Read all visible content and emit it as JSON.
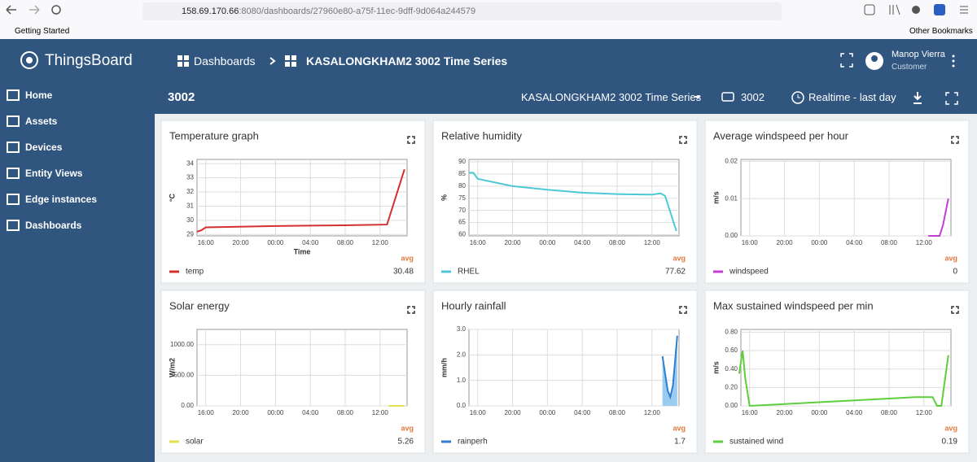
{
  "browser": {
    "url_host": "158.69.170.66",
    "url_rest": ":8080/dashboards/27960e80-a75f-11ec-9dff-9d064a244579",
    "bookmark": "Getting Started",
    "other_bookmarks": "Other Bookmarks"
  },
  "sidebar": {
    "logo": "ThingsBoard",
    "items": [
      "Home",
      "Assets",
      "Devices",
      "Entity Views",
      "Edge instances",
      "Dashboards"
    ]
  },
  "header": {
    "crumb1": "Dashboards",
    "crumb2": "KASALONGKHAM2 3002 Time Series",
    "user": "Manop Vierra",
    "role": "Customer"
  },
  "toolbar": {
    "title": "3002",
    "dashboard": "KASALONGKHAM2 3002 Time Series",
    "device": "3002",
    "timewindow": "Realtime - last day"
  },
  "chart_data": [
    {
      "type": "line",
      "title": "Temperature graph",
      "y_label": "°C",
      "x_label": "Time",
      "x": [
        15,
        15.5,
        16,
        24,
        32,
        36.8,
        38.8
      ],
      "series": [
        {
          "name": "temp",
          "color": "#d32f2f",
          "values": [
            29.2,
            29.3,
            29.5,
            29.6,
            29.65,
            29.7,
            33.6
          ]
        }
      ],
      "xlim": [
        15,
        39.1
      ],
      "ylim": [
        28.9,
        34.3
      ],
      "xticks": [
        {
          "value": 16,
          "label": "16:00"
        },
        {
          "value": 20,
          "label": "20:00"
        },
        {
          "value": 24,
          "label": "00:00"
        },
        {
          "value": 28,
          "label": "04:00"
        },
        {
          "value": 32,
          "label": "08:00"
        },
        {
          "value": 36,
          "label": "12:00"
        }
      ],
      "yticks": [
        29,
        30,
        31,
        32,
        33,
        34
      ],
      "grid": true,
      "avg_label": "avg",
      "avg": 30.48
    },
    {
      "type": "line",
      "title": "Relative humidity",
      "y_label": "%",
      "x": [
        15,
        15.5,
        16,
        20,
        24,
        28,
        32,
        36,
        37,
        37.5,
        38.8
      ],
      "series": [
        {
          "name": "RHEL",
          "color": "#4dc9d6",
          "values": [
            85.5,
            85.5,
            83,
            80,
            78.5,
            77.3,
            76.7,
            76.5,
            77,
            76,
            61.5
          ]
        }
      ],
      "xlim": [
        15,
        39.1
      ],
      "ylim": [
        59.5,
        91
      ],
      "xticks": [
        {
          "value": 16,
          "label": "16:00"
        },
        {
          "value": 20,
          "label": "20:00"
        },
        {
          "value": 24,
          "label": "00:00"
        },
        {
          "value": 28,
          "label": "04:00"
        },
        {
          "value": 32,
          "label": "08:00"
        },
        {
          "value": 36,
          "label": "12:00"
        }
      ],
      "yticks": [
        60,
        65,
        70,
        75,
        80,
        85,
        90
      ],
      "grid": true,
      "avg_label": "avg",
      "avg": 77.62
    },
    {
      "type": "line",
      "title": "Average windspeed per hour",
      "y_label": "m/s",
      "x": [
        36.5,
        37.8,
        38.2,
        38.8
      ],
      "series": [
        {
          "name": "windspeed",
          "color": "#c040d0",
          "values": [
            0,
            0,
            0.003,
            0.01
          ]
        }
      ],
      "xlim": [
        15,
        39.1
      ],
      "ylim": [
        0,
        0.0205
      ],
      "xticks": [
        {
          "value": 16,
          "label": "16:00"
        },
        {
          "value": 20,
          "label": "20:00"
        },
        {
          "value": 24,
          "label": "00:00"
        },
        {
          "value": 28,
          "label": "04:00"
        },
        {
          "value": 32,
          "label": "08:00"
        },
        {
          "value": 36,
          "label": "12:00"
        }
      ],
      "yticks": [
        {
          "value": 0,
          "label": "0.00"
        },
        {
          "value": 0.01,
          "label": "0.01"
        },
        {
          "value": 0.02,
          "label": "0.02"
        }
      ],
      "grid": true,
      "avg_label": "avg",
      "avg": 0
    },
    {
      "type": "line",
      "title": "Solar energy",
      "y_label": "W/m2",
      "x": [
        37,
        38.8
      ],
      "series": [
        {
          "name": "solar",
          "color": "#e6e04a",
          "values": [
            0,
            0
          ]
        }
      ],
      "xlim": [
        15,
        39.1
      ],
      "ylim": [
        0,
        1250
      ],
      "xticks": [
        {
          "value": 16,
          "label": "16:00"
        },
        {
          "value": 20,
          "label": "20:00"
        },
        {
          "value": 24,
          "label": "00:00"
        },
        {
          "value": 28,
          "label": "04:00"
        },
        {
          "value": 32,
          "label": "08:00"
        },
        {
          "value": 36,
          "label": "12:00"
        }
      ],
      "yticks": [
        {
          "value": 0,
          "label": "0.00"
        },
        {
          "value": 500,
          "label": "500.00"
        },
        {
          "value": 1000,
          "label": "1000.00"
        }
      ],
      "grid": true,
      "avg_label": "avg",
      "avg": 5.26
    },
    {
      "type": "area",
      "title": "Hourly rainfall",
      "y_label": "mm/h",
      "x": [
        37.2,
        37.8,
        38.1,
        38.4,
        38.9
      ],
      "series": [
        {
          "name": "rainperh",
          "color": "#2f7fd0",
          "values": [
            1.95,
            0.6,
            0.35,
            0.8,
            2.75
          ]
        }
      ],
      "xlim": [
        15,
        39.1
      ],
      "ylim": [
        0,
        3
      ],
      "xticks": [
        {
          "value": 16,
          "label": "16:00"
        },
        {
          "value": 20,
          "label": "20:00"
        },
        {
          "value": 24,
          "label": "00:00"
        },
        {
          "value": 28,
          "label": "04:00"
        },
        {
          "value": 32,
          "label": "08:00"
        },
        {
          "value": 36,
          "label": "12:00"
        }
      ],
      "yticks": [
        {
          "value": 0,
          "label": "0.0"
        },
        {
          "value": 1,
          "label": "1.0"
        },
        {
          "value": 2,
          "label": "2.0"
        },
        {
          "value": 3,
          "label": "3.0"
        }
      ],
      "grid": true,
      "avg_label": "avg",
      "avg": 1.7
    },
    {
      "type": "line",
      "title": "Max sustained windspeed per min",
      "y_label": "m/s",
      "x": [
        14.8,
        15.2,
        15.5,
        16,
        20,
        24,
        28,
        32,
        35,
        37,
        37.5,
        38,
        38.8
      ],
      "series": [
        {
          "name": "sustained wind",
          "color": "#5ccf3c",
          "values": [
            0.35,
            0.6,
            0.3,
            0,
            0.02,
            0.04,
            0.06,
            0.08,
            0.095,
            0.095,
            0,
            0,
            0.55
          ]
        }
      ],
      "xlim": [
        15,
        39.1
      ],
      "ylim": [
        0,
        0.83
      ],
      "xticks": [
        {
          "value": 16,
          "label": "16:00"
        },
        {
          "value": 20,
          "label": "20:00"
        },
        {
          "value": 24,
          "label": "00:00"
        },
        {
          "value": 28,
          "label": "04:00"
        },
        {
          "value": 32,
          "label": "08:00"
        },
        {
          "value": 36,
          "label": "12:00"
        }
      ],
      "yticks": [
        {
          "value": 0,
          "label": "0.00"
        },
        {
          "value": 0.2,
          "label": "0.20"
        },
        {
          "value": 0.4,
          "label": "0.40"
        },
        {
          "value": 0.6,
          "label": "0.60"
        },
        {
          "value": 0.8,
          "label": "0.80"
        }
      ],
      "grid": true,
      "avg_label": "avg",
      "avg": 0.19
    }
  ]
}
